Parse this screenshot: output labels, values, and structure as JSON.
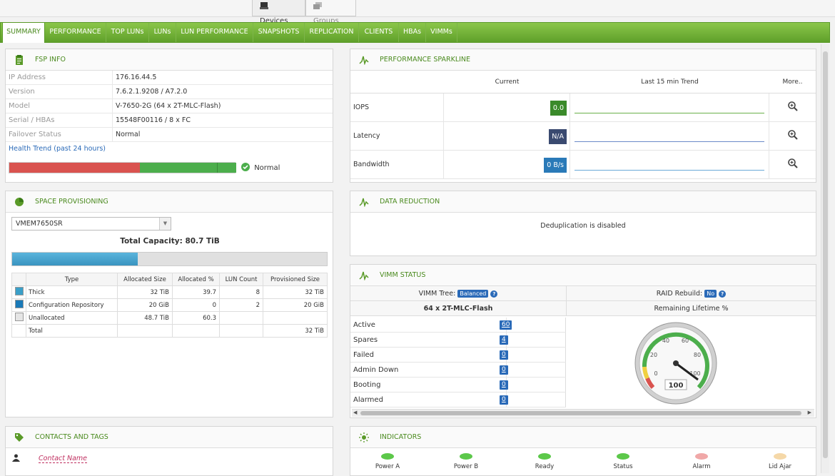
{
  "top_tabs": [
    {
      "label": "Devices"
    },
    {
      "label": "Groups"
    }
  ],
  "nav_tabs": [
    "SUMMARY",
    "PERFORMANCE",
    "TOP LUNs",
    "LUNs",
    "LUN PERFORMANCE",
    "SNAPSHOTS",
    "REPLICATION",
    "CLIENTS",
    "HBAs",
    "VIMMs"
  ],
  "fsp": {
    "title": "FSP INFO",
    "rows": [
      {
        "k": "IP Address",
        "v": "176.16.44.5"
      },
      {
        "k": "Version",
        "v": "7.6.2.1.9208 / A7.2.0"
      },
      {
        "k": "Model",
        "v": "V-7650-2G (64 x 2T-MLC-Flash)"
      },
      {
        "k": "Serial / HBAs",
        "v": "15548F00116 / 8 x FC"
      },
      {
        "k": "Failover Status",
        "v": "Normal"
      }
    ],
    "health_link": "Health Trend (past 24 hours)",
    "health_status": "Normal"
  },
  "space": {
    "title": "SPACE PROVISIONING",
    "select_value": "VMEM7650SR",
    "total_capacity": "Total Capacity: 80.7 TiB",
    "used_fraction": 0.4,
    "columns": [
      "Type",
      "Allocated Size",
      "Allocated %",
      "LUN Count",
      "Provisioned Size"
    ],
    "rows": [
      {
        "type": "Thick",
        "alloc": "32 TiB",
        "pct": "39.7",
        "luns": "8",
        "prov": "32 TiB",
        "swatch": "#3a9fc8"
      },
      {
        "type": "Configuration Repository",
        "alloc": "20 GiB",
        "pct": "0",
        "luns": "2",
        "prov": "20 GiB",
        "swatch": "#1a7ab8"
      },
      {
        "type": "Unallocated",
        "alloc": "48.7 TiB",
        "pct": "60.3",
        "luns": "",
        "prov": "",
        "swatch": "#e5e5e5"
      },
      {
        "type": "Total",
        "alloc": "",
        "pct": "",
        "luns": "",
        "prov": "32 TiB",
        "swatch": ""
      }
    ]
  },
  "contacts": {
    "title": "CONTACTS AND TAGS",
    "contact_name": "Contact Name"
  },
  "perf": {
    "title": "PERFORMANCE SPARKLINE",
    "col_current": "Current",
    "col_trend": "Last 15 min Trend",
    "col_more": "More..",
    "rows": [
      {
        "label": "IOPS",
        "value": "0.0",
        "color": "#3a8a2a",
        "line": "#6ab04a"
      },
      {
        "label": "Latency",
        "value": "N/A",
        "color": "#3a4a70",
        "line": "#6a8ac8"
      },
      {
        "label": "Bandwidth",
        "value": "0 B/s",
        "color": "#2a7ab8",
        "line": "#6aaad8"
      }
    ]
  },
  "dedup": {
    "title": "DATA REDUCTION",
    "message": "Deduplication is disabled"
  },
  "vimm": {
    "title": "VIMM STATUS",
    "tree_label": "VIMM Tree:",
    "tree_badge": "Balanced",
    "raid_label": "RAID Rebuild:",
    "raid_badge": "No",
    "config": "64 x 2T-MLC-Flash",
    "lifetime_label": "Remaining Lifetime %",
    "gauge_value": "100",
    "gauge_ticks": [
      "0",
      "20",
      "40",
      "60",
      "80",
      "100"
    ],
    "states": [
      {
        "label": "Active",
        "count": "60"
      },
      {
        "label": "Spares",
        "count": "4"
      },
      {
        "label": "Failed",
        "count": "0"
      },
      {
        "label": "Admin Down",
        "count": "0"
      },
      {
        "label": "Booting",
        "count": "0"
      },
      {
        "label": "Alarmed",
        "count": "0"
      }
    ]
  },
  "indicators": {
    "title": "INDICATORS",
    "items": [
      {
        "label": "Power A",
        "color": "#5cc84a"
      },
      {
        "label": "Power B",
        "color": "#5cc84a"
      },
      {
        "label": "Ready",
        "color": "#5cc84a"
      },
      {
        "label": "Status",
        "color": "#5cc84a"
      },
      {
        "label": "Alarm",
        "color": "#f0a8a8"
      },
      {
        "label": "Lid Ajar",
        "color": "#f5d8a8"
      }
    ]
  }
}
